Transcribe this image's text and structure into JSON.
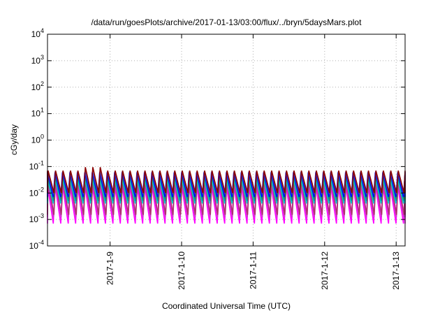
{
  "chart_data": {
    "type": "line",
    "title": "/data/run/goesPlots/archive/2017-01-13/03:00/flux/../bryn/5daysMars.plot",
    "xlabel": "Coordinated Universal Time (UTC)",
    "ylabel": "cGy/day",
    "yscale": "log",
    "ylim": [
      0.0001,
      10000
    ],
    "y_ticks": [
      {
        "base": "10",
        "exp": "-4"
      },
      {
        "base": "10",
        "exp": "-3"
      },
      {
        "base": "10",
        "exp": "-2"
      },
      {
        "base": "10",
        "exp": "-1"
      },
      {
        "base": "10",
        "exp": "0"
      },
      {
        "base": "10",
        "exp": "1"
      },
      {
        "base": "10",
        "exp": "2"
      },
      {
        "base": "10",
        "exp": "3"
      },
      {
        "base": "10",
        "exp": "4"
      }
    ],
    "xlim": [
      "2017-01-08 03:00",
      "2017-01-13 03:00"
    ],
    "x_ticks": [
      "2017-1-9",
      "2017-1-10",
      "2017-1-11",
      "2017-1-12",
      "2017-1-13"
    ],
    "grid": true,
    "legend": "none",
    "sawtooth_period_hours": 2.5,
    "series": [
      {
        "color": "#ff00ff",
        "peak": 0.02,
        "trough": 0.0007
      },
      {
        "color": "#cc33cc",
        "peak": 0.025,
        "trough": 0.0012
      },
      {
        "color": "#b0306f",
        "peak": 0.03,
        "trough": 0.0015
      },
      {
        "color": "#00cccc",
        "peak": 0.035,
        "trough": 0.004
      },
      {
        "color": "#009999",
        "peak": 0.045,
        "trough": 0.005
      },
      {
        "color": "#2e8b57",
        "peak": 0.05,
        "trough": 0.006
      },
      {
        "color": "#0000ff",
        "peak": 0.06,
        "trough": 0.007
      },
      {
        "color": "#3a3ac8",
        "peak": 0.065,
        "trough": 0.009
      },
      {
        "color": "#8b0000",
        "peak": 0.07,
        "trough": 0.01
      }
    ]
  }
}
